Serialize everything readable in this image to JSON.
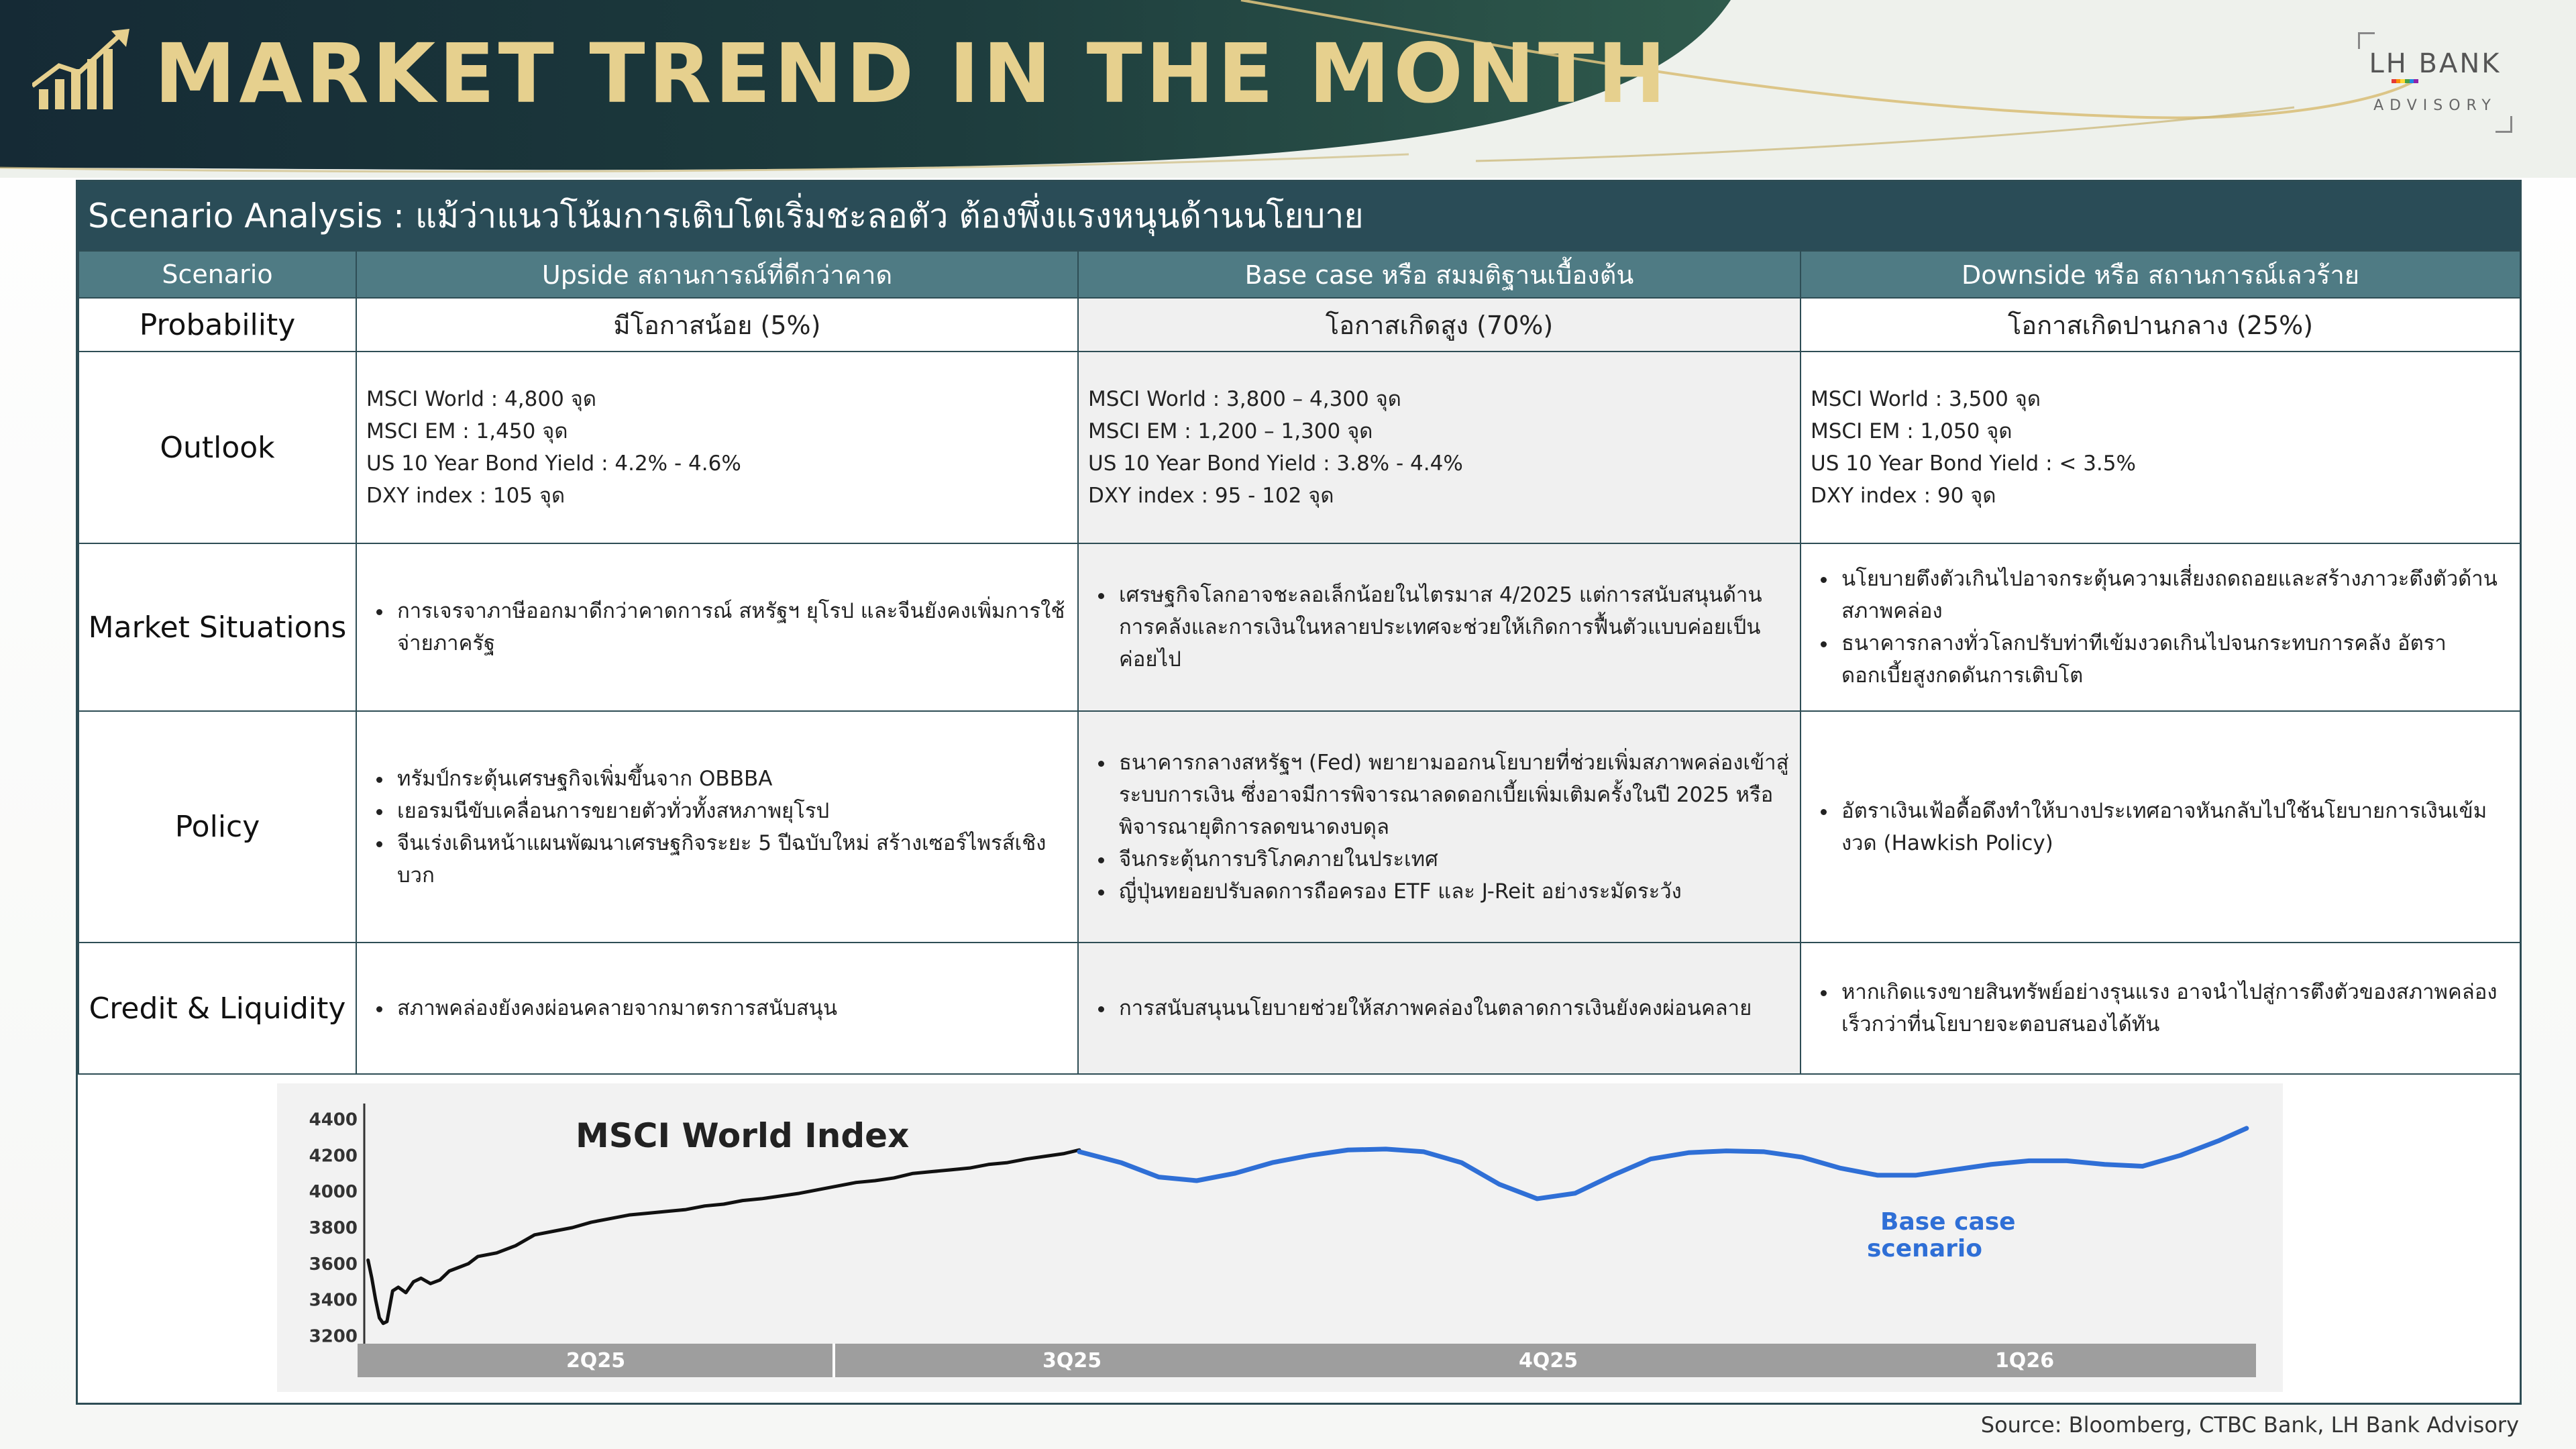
{
  "header": {
    "title": "MARKET TREND IN THE MONTH",
    "logo_icon": "rising-chart-icon",
    "brand_main": "LH BANK",
    "brand_sub": "ADVISORY",
    "brand_colors": [
      "#e53935",
      "#fb8c00",
      "#fdd835",
      "#43a047",
      "#1e88e5",
      "#8e24aa"
    ]
  },
  "section_title": "Scenario Analysis : แม้ว่าแนวโน้มการเติบโตเริ่มชะลอตัว ต้องพึ่งแรงหนุนด้านนโยบาย",
  "table": {
    "headers": [
      "Scenario",
      "Upside สถานการณ์ที่ดีกว่าคาด",
      "Base case หรือ สมมติฐานเบื้องต้น",
      "Downside หรือ สถานการณ์เลวร้าย"
    ],
    "probability": {
      "label": "Probability",
      "values": [
        "มีโอกาสน้อย (5%)",
        "โอกาสเกิดสูง (70%)",
        "โอกาสเกิดปานกลาง (25%)"
      ]
    },
    "outlook": {
      "label": "Outlook",
      "upside": [
        "MSCI World : 4,800 จุด",
        "MSCI EM : 1,450 จุด",
        "US 10 Year Bond Yield : 4.2% - 4.6%",
        "DXY index : 105 จุด"
      ],
      "base": [
        "MSCI World : 3,800 – 4,300 จุด",
        "MSCI EM : 1,200 – 1,300 จุด",
        "US 10 Year Bond Yield : 3.8% - 4.4%",
        "DXY index : 95 - 102 จุด"
      ],
      "downside": [
        "MSCI World : 3,500 จุด",
        "MSCI EM : 1,050 จุด",
        "US 10 Year Bond Yield : < 3.5%",
        "DXY index :  90 จุด"
      ]
    },
    "market": {
      "label": "Market Situations",
      "upside": [
        "การเจรจาภาษีออกมาดีกว่าคาดการณ์ สหรัฐฯ ยุโรป และจีนยังคงเพิ่มการใช้จ่ายภาครัฐ"
      ],
      "base": [
        "เศรษฐกิจโลกอาจชะลอเล็กน้อยในไตรมาส 4/2025 แต่การสนับสนุนด้านการคลังและการเงินในหลายประเทศจะช่วยให้เกิดการฟื้นตัวแบบค่อยเป็นค่อยไป"
      ],
      "downside": [
        "นโยบายตึงตัวเกินไปอาจกระตุ้นความเสี่ยงถดถอยและสร้างภาวะตึงตัวด้านสภาพคล่อง",
        "ธนาคารกลางทั่วโลกปรับท่าทีเข้มงวดเกินไปจนกระทบการคลัง อัตราดอกเบี้ยสูงกดดันการเติบโต"
      ]
    },
    "policy": {
      "label": "Policy",
      "upside": [
        "ทรัมป์กระตุ้นเศรษฐกิจเพิ่มขึ้นจาก OBBBA",
        "เยอรมนีขับเคลื่อนการขยายตัวทั่วทั้งสหภาพยุโรป",
        "จีนเร่งเดินหน้าแผนพัฒนาเศรษฐกิจระยะ 5 ปีฉบับใหม่ สร้างเซอร์ไพรส์เชิงบวก"
      ],
      "base": [
        "ธนาคารกลางสหรัฐฯ (Fed) พยายามออกนโยบายที่ช่วยเพิ่มสภาพคล่องเข้าสู่ระบบการเงิน ซึ่งอาจมีการพิจารณาลดดอกเบี้ยเพิ่มเติมครั้งในปี 2025 หรือพิจารณายุติการลดขนาดงบดุล",
        "จีนกระตุ้นการบริโภคภายในประเทศ",
        "ญี่ปุ่นทยอยปรับลดการถือครอง ETF และ J-Reit อย่างระมัดระวัง"
      ],
      "downside": [
        "อัตราเงินเฟ้อดื้อดึงทำให้บางประเทศอาจหันกลับไปใช้นโยบายการเงินเข้มงวด (Hawkish Policy)"
      ]
    },
    "credit": {
      "label": "Credit & Liquidity",
      "upside": [
        "สภาพคล่องยังคงผ่อนคลายจากมาตรการสนับสนุน"
      ],
      "base": [
        "การสนับสนุนนโยบายช่วยให้สภาพคล่องในตลาดการเงินยังคงผ่อนคลาย"
      ],
      "downside": [
        "หากเกิดแรงขายสินทรัพย์อย่างรุนแรง อาจนำไปสู่การตึงตัวของสภาพคล่องเร็วกว่าที่นโยบายจะตอบสนองได้ทัน"
      ]
    }
  },
  "chart_data": {
    "type": "line",
    "title": "MSCI World Index",
    "annotation": "Base case scenario",
    "x_labels": [
      "2Q25",
      "3Q25",
      "4Q25",
      "1Q26"
    ],
    "y_ticks": [
      4400,
      4200,
      4000,
      3800,
      3600,
      3400,
      3200
    ],
    "ylim": [
      3150,
      4450
    ],
    "xlim": [
      0,
      4
    ],
    "series": [
      {
        "name": "",
        "color": "#111111",
        "x": [
          0.02,
          0.04,
          0.06,
          0.08,
          0.1,
          0.12,
          0.15,
          0.18,
          0.22,
          0.26,
          0.3,
          0.35,
          0.4,
          0.45,
          0.5,
          0.55,
          0.6,
          0.7,
          0.8,
          0.9,
          1.0,
          1.1,
          1.2,
          1.3,
          1.4,
          1.5,
          1.6,
          1.7,
          1.8,
          1.9,
          2.0,
          2.1,
          2.2,
          2.3,
          2.4,
          2.5,
          2.6,
          2.7,
          2.8,
          2.9,
          3.0,
          3.1,
          3.2,
          3.3,
          3.4,
          3.5,
          3.6,
          3.7,
          3.78
        ],
        "y": [
          3620,
          3520,
          3400,
          3300,
          3270,
          3280,
          3450,
          3470,
          3440,
          3500,
          3520,
          3490,
          3510,
          3560,
          3580,
          3600,
          3640,
          3660,
          3700,
          3760,
          3780,
          3800,
          3830,
          3850,
          3870,
          3880,
          3890,
          3900,
          3920,
          3930,
          3950,
          3960,
          3975,
          3990,
          4010,
          4030,
          4050,
          4060,
          4075,
          4100,
          4110,
          4120,
          4130,
          4150,
          4160,
          4180,
          4195,
          4210,
          4230
        ]
      },
      {
        "name": "Base case scenario",
        "color": "#2f6fd6",
        "x": [
          3.78,
          4.0,
          4.2,
          4.4,
          4.6,
          4.8,
          5.0,
          5.2,
          5.4,
          5.6,
          5.8,
          6.0,
          6.2,
          6.4,
          6.6,
          6.8,
          7.0,
          7.2,
          7.4,
          7.6,
          7.8,
          8.0,
          8.2,
          8.4,
          8.6,
          8.8,
          9.0,
          9.2,
          9.4,
          9.6,
          9.8,
          9.95
        ],
        "y": [
          4220,
          4160,
          4080,
          4060,
          4100,
          4160,
          4200,
          4230,
          4235,
          4220,
          4160,
          4040,
          3960,
          3990,
          4090,
          4180,
          4215,
          4225,
          4220,
          4190,
          4130,
          4090,
          4090,
          4120,
          4150,
          4170,
          4170,
          4150,
          4140,
          4200,
          4280,
          4350
        ]
      }
    ]
  },
  "source": "Source: Bloomberg, CTBC Bank, LH Bank Advisory"
}
